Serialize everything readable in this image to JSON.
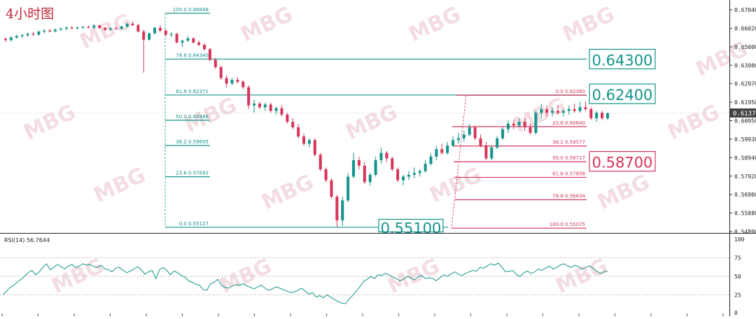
{
  "chart_title": "4小时图",
  "watermark": "MBG",
  "colors": {
    "up": "#14948a",
    "down": "#d6345a",
    "fib_left": "#14948a",
    "fib_right": "#d6345a",
    "price_bg": "#444444",
    "rsi": "#14948a"
  },
  "price_axis": {
    "ticks": [
      "0.67040",
      "0.66020",
      "0.65000",
      "0.63980",
      "0.62970",
      "0.61950",
      "0.60950",
      "0.59930",
      "0.58940",
      "0.57920",
      "0.56900",
      "0.55880",
      "0.54890"
    ],
    "current_price": "0.61379"
  },
  "rsi_panel": {
    "label": "RSI(14) 56.7644",
    "ticks": [
      "100",
      "75",
      "50",
      "25",
      "0"
    ],
    "ylim": [
      0,
      100
    ],
    "levels": [
      75,
      50,
      25
    ]
  },
  "fib_left": [
    {
      "label": "100.0  0.66848",
      "price": 0.66848
    },
    {
      "label": "78.6  0.64340",
      "price": 0.6434
    },
    {
      "label": "61.8  0.62371",
      "price": 0.62371
    },
    {
      "label": "50.0  0.60988",
      "price": 0.60988
    },
    {
      "label": "38.2  0.59605",
      "price": 0.59605
    },
    {
      "label": "23.6  0.57893",
      "price": 0.57893
    },
    {
      "label": "0.0  0.55127",
      "price": 0.55127
    }
  ],
  "fib_right": [
    {
      "label": "0.0  0.62360",
      "price": 0.6236
    },
    {
      "label": "23.6  0.60640",
      "price": 0.6064
    },
    {
      "label": "38.2  0.59577",
      "price": 0.59577
    },
    {
      "label": "50.0  0.58717",
      "price": 0.58717
    },
    {
      "label": "61.8  0.57858",
      "price": 0.57858
    },
    {
      "label": "78.6  0.56634",
      "price": 0.56634
    },
    {
      "label": "100.0  0.55075",
      "price": 0.55075
    }
  ],
  "level_boxes": [
    {
      "label": "0.64300",
      "price": 0.643,
      "color": "#14948a"
    },
    {
      "label": "0.62400",
      "price": 0.624,
      "color": "#14948a"
    },
    {
      "label": "0.58700",
      "price": 0.587,
      "color": "#d6345a"
    },
    {
      "label": "0.55100",
      "price": 0.551,
      "color": "#14948a"
    }
  ],
  "chart_data": [
    {
      "type": "candlestick",
      "title": "4小时图",
      "ylim": [
        0.5489,
        0.6704
      ],
      "candles": [
        [
          0.6545,
          0.6552,
          0.6528,
          0.6538
        ],
        [
          0.6538,
          0.656,
          0.653,
          0.6552
        ],
        [
          0.6552,
          0.6568,
          0.6545,
          0.656
        ],
        [
          0.656,
          0.6572,
          0.655,
          0.6565
        ],
        [
          0.6565,
          0.658,
          0.6555,
          0.6572
        ],
        [
          0.6572,
          0.6583,
          0.6562,
          0.6568
        ],
        [
          0.6568,
          0.659,
          0.6562,
          0.6585
        ],
        [
          0.6585,
          0.6598,
          0.6575,
          0.659
        ],
        [
          0.659,
          0.66,
          0.658,
          0.6586
        ],
        [
          0.6586,
          0.6602,
          0.658,
          0.6595
        ],
        [
          0.6595,
          0.6608,
          0.6588,
          0.66
        ],
        [
          0.66,
          0.6612,
          0.6592,
          0.6606
        ],
        [
          0.6606,
          0.6615,
          0.6598,
          0.6603
        ],
        [
          0.6603,
          0.6612,
          0.6596,
          0.6608
        ],
        [
          0.6608,
          0.6615,
          0.66,
          0.661
        ],
        [
          0.661,
          0.6618,
          0.6602,
          0.6606
        ],
        [
          0.6606,
          0.6625,
          0.66,
          0.6618
        ],
        [
          0.6618,
          0.6622,
          0.66,
          0.6605
        ],
        [
          0.6605,
          0.661,
          0.659,
          0.6595
        ],
        [
          0.6595,
          0.6608,
          0.659,
          0.6602
        ],
        [
          0.6602,
          0.6612,
          0.6595,
          0.66
        ],
        [
          0.66,
          0.6618,
          0.6596,
          0.6612
        ],
        [
          0.6612,
          0.6632,
          0.6605,
          0.6628
        ],
        [
          0.6628,
          0.664,
          0.6615,
          0.662
        ],
        [
          0.662,
          0.6628,
          0.658,
          0.6585
        ],
        [
          0.6585,
          0.6595,
          0.636,
          0.654
        ],
        [
          0.654,
          0.658,
          0.6535,
          0.6575
        ],
        [
          0.6575,
          0.6612,
          0.657,
          0.6605
        ],
        [
          0.6605,
          0.662,
          0.658,
          0.659
        ],
        [
          0.659,
          0.6598,
          0.656,
          0.6568
        ],
        [
          0.6568,
          0.658,
          0.6555,
          0.6572
        ],
        [
          0.6572,
          0.6578,
          0.652,
          0.6525
        ],
        [
          0.6525,
          0.654,
          0.65,
          0.6535
        ],
        [
          0.6535,
          0.656,
          0.6528,
          0.6548
        ],
        [
          0.6548,
          0.6552,
          0.652,
          0.6525
        ],
        [
          0.6525,
          0.6535,
          0.6505,
          0.6512
        ],
        [
          0.6512,
          0.652,
          0.648,
          0.6488
        ],
        [
          0.6488,
          0.6495,
          0.642,
          0.643
        ],
        [
          0.643,
          0.644,
          0.638,
          0.639
        ],
        [
          0.639,
          0.64,
          0.632,
          0.633
        ],
        [
          0.633,
          0.6345,
          0.628,
          0.63
        ],
        [
          0.63,
          0.633,
          0.629,
          0.632
        ],
        [
          0.632,
          0.6335,
          0.63,
          0.631
        ],
        [
          0.631,
          0.632,
          0.627,
          0.628
        ],
        [
          0.628,
          0.629,
          0.616,
          0.618
        ],
        [
          0.618,
          0.621,
          0.614,
          0.619
        ],
        [
          0.619,
          0.62,
          0.616,
          0.617
        ],
        [
          0.617,
          0.6195,
          0.615,
          0.6185
        ],
        [
          0.6185,
          0.6195,
          0.614,
          0.615
        ],
        [
          0.615,
          0.6175,
          0.613,
          0.6165
        ],
        [
          0.6165,
          0.618,
          0.612,
          0.613
        ],
        [
          0.613,
          0.614,
          0.608,
          0.609
        ],
        [
          0.609,
          0.611,
          0.605,
          0.606
        ],
        [
          0.606,
          0.608,
          0.6,
          0.601
        ],
        [
          0.601,
          0.6025,
          0.596,
          0.597
        ],
        [
          0.597,
          0.6,
          0.595,
          0.599
        ],
        [
          0.599,
          0.6,
          0.59,
          0.591
        ],
        [
          0.591,
          0.592,
          0.582,
          0.583
        ],
        [
          0.583,
          0.584,
          0.576,
          0.577
        ],
        [
          0.577,
          0.578,
          0.567,
          0.568
        ],
        [
          0.568,
          0.569,
          0.5515,
          0.555
        ],
        [
          0.555,
          0.568,
          0.552,
          0.566
        ],
        [
          0.566,
          0.581,
          0.565,
          0.579
        ],
        [
          0.579,
          0.592,
          0.578,
          0.588
        ],
        [
          0.588,
          0.59,
          0.583,
          0.585
        ],
        [
          0.585,
          0.587,
          0.575,
          0.576
        ],
        [
          0.576,
          0.581,
          0.574,
          0.58
        ],
        [
          0.58,
          0.59,
          0.579,
          0.588
        ],
        [
          0.588,
          0.595,
          0.586,
          0.592
        ],
        [
          0.592,
          0.593,
          0.587,
          0.589
        ],
        [
          0.589,
          0.59,
          0.582,
          0.583
        ],
        [
          0.583,
          0.584,
          0.576,
          0.577
        ],
        [
          0.577,
          0.58,
          0.574,
          0.579
        ],
        [
          0.579,
          0.582,
          0.577,
          0.58
        ],
        [
          0.58,
          0.584,
          0.578,
          0.581
        ],
        [
          0.581,
          0.583,
          0.579,
          0.582
        ],
        [
          0.582,
          0.588,
          0.581,
          0.586
        ],
        [
          0.586,
          0.592,
          0.585,
          0.59
        ],
        [
          0.59,
          0.596,
          0.588,
          0.594
        ],
        [
          0.594,
          0.597,
          0.591,
          0.592
        ],
        [
          0.592,
          0.598,
          0.591,
          0.596
        ],
        [
          0.596,
          0.601,
          0.595,
          0.599
        ],
        [
          0.599,
          0.603,
          0.597,
          0.6
        ],
        [
          0.6,
          0.604,
          0.598,
          0.602
        ],
        [
          0.602,
          0.608,
          0.601,
          0.606
        ],
        [
          0.606,
          0.6065,
          0.599,
          0.6
        ],
        [
          0.6,
          0.602,
          0.595,
          0.596
        ],
        [
          0.596,
          0.598,
          0.588,
          0.589
        ],
        [
          0.589,
          0.596,
          0.588,
          0.595
        ],
        [
          0.595,
          0.601,
          0.594,
          0.6
        ],
        [
          0.6,
          0.606,
          0.599,
          0.605
        ],
        [
          0.605,
          0.61,
          0.603,
          0.608
        ],
        [
          0.608,
          0.61,
          0.605,
          0.607
        ],
        [
          0.607,
          0.611,
          0.606,
          0.609
        ],
        [
          0.609,
          0.611,
          0.604,
          0.606
        ],
        [
          0.606,
          0.608,
          0.602,
          0.603
        ],
        [
          0.603,
          0.615,
          0.602,
          0.614
        ],
        [
          0.614,
          0.619,
          0.611,
          0.616
        ],
        [
          0.616,
          0.618,
          0.612,
          0.614
        ],
        [
          0.614,
          0.617,
          0.612,
          0.615
        ],
        [
          0.615,
          0.618,
          0.613,
          0.614
        ],
        [
          0.614,
          0.616,
          0.612,
          0.615
        ],
        [
          0.615,
          0.618,
          0.613,
          0.616
        ],
        [
          0.616,
          0.619,
          0.614,
          0.615
        ],
        [
          0.615,
          0.62,
          0.614,
          0.617
        ],
        [
          0.617,
          0.62,
          0.615,
          0.616
        ],
        [
          0.616,
          0.617,
          0.61,
          0.611
        ],
        [
          0.611,
          0.615,
          0.609,
          0.614
        ],
        [
          0.614,
          0.615,
          0.61,
          0.611
        ],
        [
          0.611,
          0.614,
          0.61,
          0.6138
        ]
      ]
    },
    {
      "type": "line",
      "title": "RSI(14) 56.7644",
      "ylim": [
        0,
        100
      ],
      "series": [
        {
          "name": "RSI(14)",
          "values": [
            25,
            30,
            35,
            38,
            42,
            46,
            50,
            55,
            58,
            52,
            56,
            62,
            67,
            59,
            62,
            66,
            63,
            60,
            64,
            66,
            62,
            64,
            67,
            65,
            66,
            63,
            62,
            65,
            60,
            59,
            56,
            61,
            62,
            58,
            55,
            57,
            60,
            63,
            59,
            53,
            56,
            58,
            47,
            59,
            62,
            58,
            52,
            57,
            55,
            51,
            49,
            44,
            42,
            39,
            38,
            32,
            31,
            40,
            42,
            46,
            38,
            35,
            34,
            37,
            39,
            38,
            40,
            37,
            35,
            33,
            36,
            38,
            34,
            31,
            33,
            36,
            34,
            32,
            30,
            28,
            29,
            31,
            34,
            30,
            26,
            28,
            22,
            24,
            21,
            25,
            22,
            19,
            16,
            14,
            13,
            19,
            24,
            30,
            36,
            43,
            46,
            50,
            47,
            52,
            51,
            54,
            52,
            49,
            47,
            44,
            46,
            50,
            48,
            45,
            50,
            51,
            47,
            48,
            47,
            44,
            48,
            52,
            50,
            53,
            56,
            53,
            51,
            54,
            56,
            58,
            57,
            62,
            61,
            64,
            67,
            65,
            68,
            62,
            56,
            57,
            58,
            52,
            50,
            55,
            57,
            54,
            56,
            60,
            58,
            61,
            64,
            60,
            62,
            65,
            67,
            64,
            62,
            65,
            63,
            60,
            62,
            64,
            61,
            57,
            54,
            56,
            57
          ]
        }
      ]
    }
  ]
}
